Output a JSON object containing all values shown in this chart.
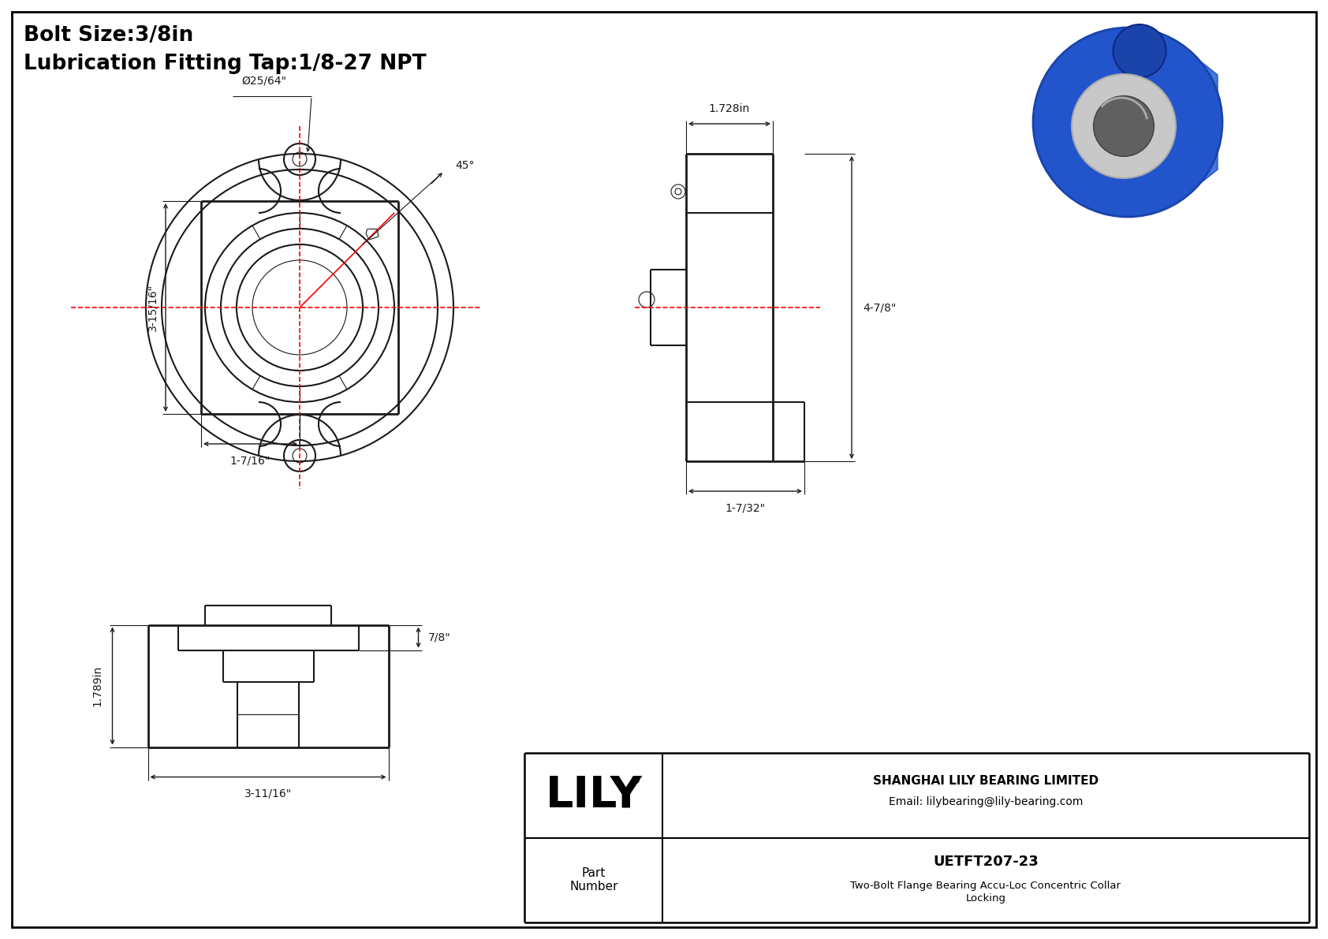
{
  "bg_color": "#ffffff",
  "line_color": "#1a1a1a",
  "dim_color": "#1a1a1a",
  "center_line_color": "#ff0000",
  "title_line1": "Bolt Size:3/8in",
  "title_line2": "Lubrication Fitting Tap:1/8-27 NPT",
  "company_name": "SHANGHAI LILY BEARING LIMITED",
  "company_email": "Email: lilybearing@lily-bearing.com",
  "part_number": "UETFT207-23",
  "part_desc1": "Two-Bolt Flange Bearing Accu-Loc Concentric Collar",
  "part_desc2": "Locking",
  "logo_text": "LILY",
  "logo_reg": "®",
  "dim_1728": "1.728in",
  "dim_315_16": "3-15/16\"",
  "dim_17_16": "1-7/16\"",
  "dim_47_8": "4-7/8\"",
  "dim_1_7_32": "1-7/32\"",
  "dim_25_64": "Ø25/64\"",
  "dim_45": "45°",
  "dim_7_8": "7/8\"",
  "dim_1789": "1.789in",
  "dim_3_11_16": "3-11/16\""
}
